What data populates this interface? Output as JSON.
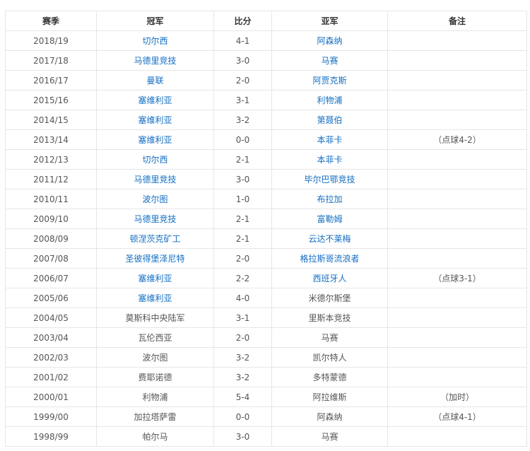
{
  "headers": [
    "赛季",
    "冠军",
    "比分",
    "亚军",
    "备注"
  ],
  "link_color": "#136ec2",
  "rows": [
    {
      "season": "2018/19",
      "champion": "切尔西",
      "champion_link": true,
      "score": "4-1",
      "runner_up": "阿森纳",
      "runner_up_link": true,
      "note": ""
    },
    {
      "season": "2017/18",
      "champion": "马德里竞技",
      "champion_link": true,
      "score": "3-0",
      "runner_up": "马赛",
      "runner_up_link": true,
      "note": ""
    },
    {
      "season": "2016/17",
      "champion": "曼联",
      "champion_link": true,
      "score": "2-0",
      "runner_up": "阿贾克斯",
      "runner_up_link": true,
      "note": ""
    },
    {
      "season": "2015/16",
      "champion": "塞维利亚",
      "champion_link": true,
      "score": "3-1",
      "runner_up": "利物浦",
      "runner_up_link": true,
      "note": ""
    },
    {
      "season": "2014/15",
      "champion": "塞维利亚",
      "champion_link": true,
      "score": "3-2",
      "runner_up": "第聂伯",
      "runner_up_link": true,
      "note": ""
    },
    {
      "season": "2013/14",
      "champion": "塞维利亚",
      "champion_link": true,
      "score": "0-0",
      "runner_up": "本菲卡",
      "runner_up_link": true,
      "note": "（点球4-2）"
    },
    {
      "season": "2012/13",
      "champion": "切尔西",
      "champion_link": true,
      "score": "2-1",
      "runner_up": "本菲卡",
      "runner_up_link": true,
      "note": ""
    },
    {
      "season": "2011/12",
      "champion": "马德里竞技",
      "champion_link": true,
      "score": "3-0",
      "runner_up": "毕尔巴鄂竞技",
      "runner_up_link": true,
      "note": ""
    },
    {
      "season": "2010/11",
      "champion": "波尔图",
      "champion_link": true,
      "score": "1-0",
      "runner_up": "布拉加",
      "runner_up_link": true,
      "note": ""
    },
    {
      "season": "2009/10",
      "champion": "马德里竞技",
      "champion_link": true,
      "score": "2-1",
      "runner_up": "富勒姆",
      "runner_up_link": true,
      "note": ""
    },
    {
      "season": "2008/09",
      "champion": "顿涅茨克矿工",
      "champion_link": true,
      "score": "2-1",
      "runner_up": "云达不莱梅",
      "runner_up_link": true,
      "note": ""
    },
    {
      "season": "2007/08",
      "champion": "圣彼得堡泽尼特",
      "champion_link": true,
      "score": "2-0",
      "runner_up": "格拉斯哥流浪者",
      "runner_up_link": true,
      "note": ""
    },
    {
      "season": "2006/07",
      "champion": "塞维利亚",
      "champion_link": true,
      "score": "2-2",
      "runner_up": "西班牙人",
      "runner_up_link": true,
      "note": "（点球3-1）"
    },
    {
      "season": "2005/06",
      "champion": "塞维利亚",
      "champion_link": true,
      "score": "4-0",
      "runner_up": "米德尔斯堡",
      "runner_up_link": false,
      "note": ""
    },
    {
      "season": "2004/05",
      "champion": "莫斯科中央陆军",
      "champion_link": false,
      "score": "3-1",
      "runner_up": "里斯本竞技",
      "runner_up_link": false,
      "note": ""
    },
    {
      "season": "2003/04",
      "champion": "瓦伦西亚",
      "champion_link": false,
      "score": "2-0",
      "runner_up": "马赛",
      "runner_up_link": false,
      "note": ""
    },
    {
      "season": "2002/03",
      "champion": "波尔图",
      "champion_link": false,
      "score": "3-2",
      "runner_up": "凯尔特人",
      "runner_up_link": false,
      "note": ""
    },
    {
      "season": "2001/02",
      "champion": "费耶诺德",
      "champion_link": false,
      "score": "3-2",
      "runner_up": "多特蒙德",
      "runner_up_link": false,
      "note": ""
    },
    {
      "season": "2000/01",
      "champion": "利物浦",
      "champion_link": false,
      "score": "5-4",
      "runner_up": "阿拉维斯",
      "runner_up_link": false,
      "note": "（加时）"
    },
    {
      "season": "1999/00",
      "champion": "加拉塔萨雷",
      "champion_link": false,
      "score": "0-0",
      "runner_up": "阿森纳",
      "runner_up_link": false,
      "note": "（点球4-1）"
    },
    {
      "season": "1998/99",
      "champion": "帕尔马",
      "champion_link": false,
      "score": "3-0",
      "runner_up": "马赛",
      "runner_up_link": false,
      "note": ""
    }
  ]
}
